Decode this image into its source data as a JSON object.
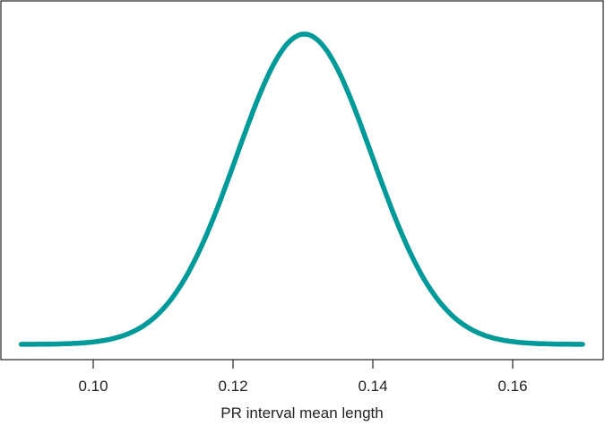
{
  "chart_data": {
    "type": "line",
    "title": "",
    "xlabel": "PR interval mean length",
    "ylabel": "",
    "series": [
      {
        "name": "density",
        "distribution": "normal",
        "mean": 0.1302,
        "sd": 0.0097,
        "x_range": [
          0.0897,
          0.17
        ]
      }
    ],
    "xlim": [
      0.0767,
      0.1628
    ],
    "ylim": [
      -2.0,
      45.5
    ],
    "xticks": [
      0.1,
      0.12,
      0.14,
      0.16
    ],
    "xtick_labels": [
      "0.10",
      "0.12",
      "0.14",
      "0.16"
    ],
    "grid": false,
    "colors": {
      "line": "#009999",
      "axis": "#222222"
    }
  }
}
